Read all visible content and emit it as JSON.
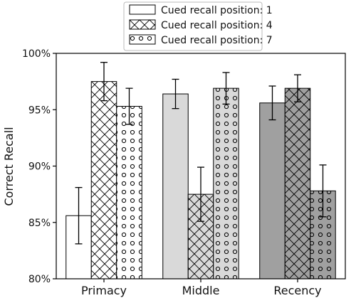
{
  "chart_data": {
    "type": "bar",
    "title": "",
    "xlabel": "",
    "ylabel": "Correct Recall",
    "ylim": [
      80,
      100
    ],
    "y_ticks": [
      {
        "value": 80,
        "label": "80%"
      },
      {
        "value": 85,
        "label": "85%"
      },
      {
        "value": 90,
        "label": "90%"
      },
      {
        "value": 95,
        "label": "95%"
      },
      {
        "value": 100,
        "label": "100%"
      }
    ],
    "categories": [
      "Primacy",
      "Middle",
      "Recency"
    ],
    "grid": false,
    "legend_position": "top-center, above plot",
    "series": [
      {
        "name": "Cued recall position: 1",
        "pattern": "none",
        "values": [
          85.6,
          96.4,
          95.6
        ],
        "error": [
          2.5,
          1.3,
          1.5
        ]
      },
      {
        "name": "Cued recall position: 4",
        "pattern": "crosshatch",
        "values": [
          97.5,
          87.5,
          96.9
        ],
        "error": [
          1.7,
          2.4,
          1.2
        ]
      },
      {
        "name": "Cued recall position: 7",
        "pattern": "circles",
        "values": [
          95.3,
          96.9,
          87.8
        ],
        "error": [
          1.6,
          1.4,
          2.3
        ]
      }
    ],
    "category_fill_colors": [
      "#ffffff",
      "#d9d9d9",
      "#a0a0a0"
    ]
  }
}
